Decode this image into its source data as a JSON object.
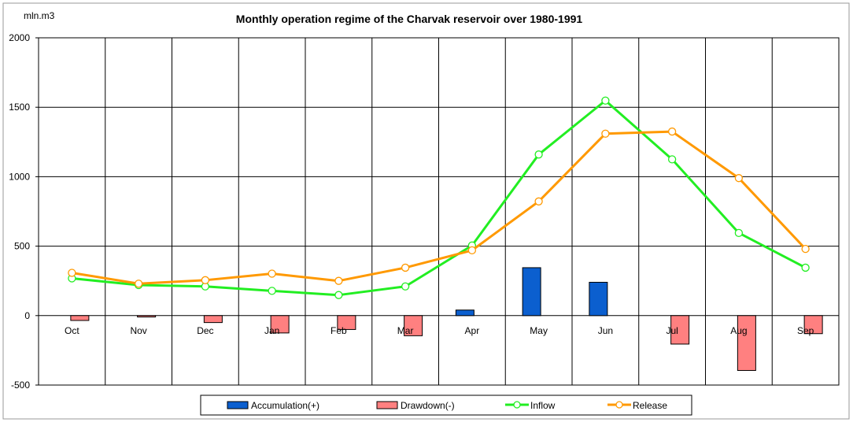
{
  "chart_data": {
    "type": "bar+line",
    "title": "Monthly operation regime of the Charvak reservoir over 1980-1991",
    "ylabel": "mln.m3",
    "xlabel": "",
    "ylim": [
      -500,
      2000
    ],
    "yticks": [
      -500,
      0,
      500,
      1000,
      1500,
      2000
    ],
    "grid": true,
    "legend_position": "bottom",
    "categories": [
      "Oct",
      "Nov",
      "Dec",
      "Jan",
      "Feb",
      "Mar",
      "Apr",
      "May",
      "Jun",
      "Jul",
      "Aug",
      "Sep"
    ],
    "series": [
      {
        "name": "Accumulation(+)",
        "kind": "bar",
        "color": "#0b5fcf",
        "values": [
          0,
          0,
          0,
          0,
          0,
          0,
          40,
          345,
          240,
          0,
          0,
          0
        ]
      },
      {
        "name": "Drawdown(-)",
        "kind": "bar",
        "color": "#ff8080",
        "values": [
          -35,
          -10,
          -50,
          -125,
          -100,
          -145,
          0,
          0,
          0,
          -205,
          -395,
          -130
        ]
      },
      {
        "name": "Inflow",
        "kind": "line",
        "color": "#22ee22",
        "values": [
          268,
          220,
          210,
          178,
          148,
          210,
          505,
          1160,
          1548,
          1125,
          595,
          345
        ]
      },
      {
        "name": "Release",
        "kind": "line",
        "color": "#ff9900",
        "values": [
          308,
          230,
          255,
          302,
          250,
          345,
          470,
          822,
          1310,
          1325,
          990,
          480
        ]
      }
    ]
  }
}
